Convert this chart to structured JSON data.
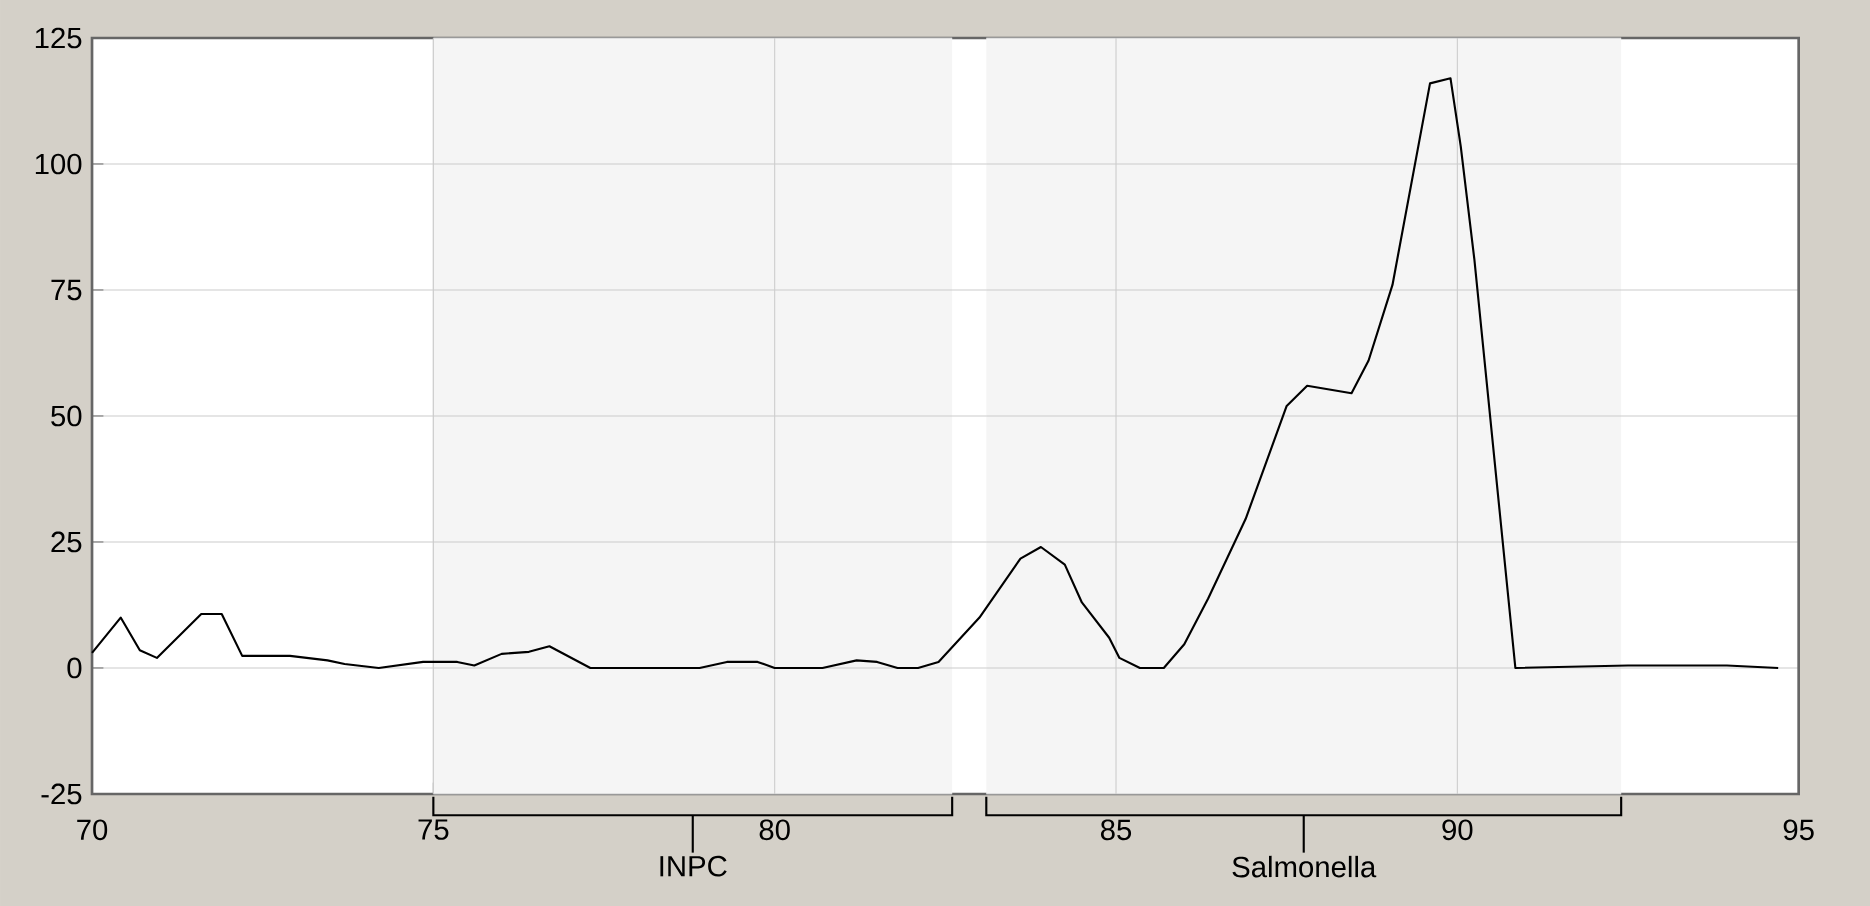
{
  "chart_data": {
    "type": "line",
    "x": [
      70,
      70.42,
      70.7,
      70.95,
      71.6,
      71.9,
      72.2,
      72.9,
      73.45,
      73.7,
      74.2,
      74.85,
      75.35,
      75.6,
      76.0,
      76.4,
      76.7,
      77.3,
      78.9,
      79.3,
      79.75,
      80,
      80.7,
      81.2,
      81.5,
      81.8,
      82.1,
      82.4,
      83.0,
      83.6,
      83.9,
      84.25,
      84.5,
      84.9,
      85.05,
      85.35,
      85.7,
      86.0,
      86.35,
      86.9,
      87.5,
      87.8,
      88.45,
      88.7,
      89.05,
      89.6,
      89.9,
      90.05,
      90.25,
      90.85,
      92.5,
      93.95,
      94.7
    ],
    "values": [
      3,
      10,
      3.5,
      2,
      10.7,
      10.7,
      2.4,
      2.4,
      1.5,
      0.8,
      0,
      1.2,
      1.2,
      0.5,
      2.8,
      3.2,
      4.3,
      0,
      0,
      1.2,
      1.2,
      0,
      0,
      1.5,
      1.2,
      0,
      0,
      1.2,
      10,
      21.7,
      24,
      20.5,
      13,
      6,
      2,
      0,
      0,
      4.7,
      13.8,
      29.6,
      52,
      56,
      54.5,
      61,
      76,
      116,
      117,
      103.5,
      81,
      0,
      0.5,
      0.5,
      0
    ],
    "color": "#000000",
    "xlim": [
      70,
      95
    ],
    "xticks": [
      70,
      75,
      80,
      85,
      90,
      95
    ],
    "ylim": [
      -25,
      125
    ],
    "yticks": [
      -25,
      0,
      25,
      50,
      75,
      100,
      125
    ],
    "grid": true,
    "bands": [
      {
        "axis": "x",
        "from": 75.0,
        "to": 82.6,
        "label": "INPC",
        "color": "#f5f5f5"
      },
      {
        "axis": "x",
        "from": 83.1,
        "to": 92.4,
        "label": "Salmonella",
        "color": "#f5f5f5"
      }
    ]
  }
}
